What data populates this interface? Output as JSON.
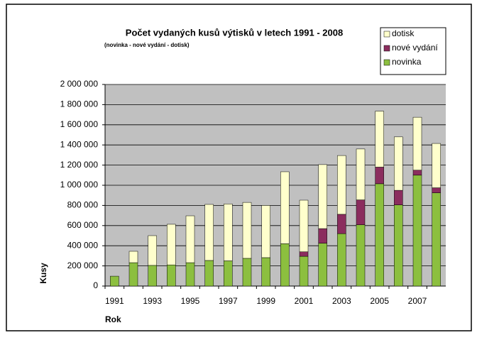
{
  "chart_data": {
    "type": "stacked_bar",
    "title": "Počet vydaných kusů výtisků v letech 1991 - 2008",
    "subtitle": "(novinka - nové vydání - dotisk)",
    "x_label": "Rok",
    "y_label": "Kusy",
    "categories": [
      "1991",
      null,
      "1993",
      null,
      "1995",
      null,
      "1997",
      null,
      "1999",
      null,
      "2001",
      null,
      "2003",
      null,
      "2005",
      null,
      "2007",
      null
    ],
    "series": [
      {
        "name": "novinka",
        "color": "#8cbf3f",
        "values": [
          98000,
          232000,
          205000,
          210000,
          232000,
          254000,
          250000,
          275000,
          282000,
          420000,
          295000,
          425000,
          520000,
          608000,
          1015000,
          805000,
          1100000,
          925000
        ]
      },
      {
        "name": "nové vydání",
        "color": "#8b2d5e",
        "values": [
          0,
          0,
          0,
          0,
          0,
          0,
          0,
          0,
          0,
          0,
          45000,
          145000,
          192000,
          247000,
          165000,
          145000,
          50000,
          50000
        ]
      },
      {
        "name": "dotisk",
        "color": "#ffffcc",
        "values": [
          0,
          113000,
          295000,
          403000,
          465000,
          556000,
          565000,
          555000,
          518000,
          714000,
          512000,
          635000,
          583000,
          505000,
          555000,
          530000,
          525000,
          440000
        ]
      }
    ],
    "ylim": [
      0,
      2000000
    ],
    "yticks": [
      0,
      {
        "value": 200000,
        "label": "200 000"
      },
      {
        "value": 400000,
        "label": "400 000"
      },
      {
        "value": 600000,
        "label": "600 000"
      },
      {
        "value": 800000,
        "label": "800 000"
      },
      {
        "value": 1000000,
        "label": "1 000 000"
      },
      {
        "value": 1200000,
        "label": "1 200 000"
      },
      {
        "value": 1400000,
        "label": "1 400 000"
      },
      {
        "value": 1600000,
        "label": "1 600 000"
      },
      {
        "value": 1800000,
        "label": "1 800 000"
      },
      {
        "value": 2000000,
        "label": "2 000 000"
      }
    ],
    "grid": true,
    "legend": "top-right"
  }
}
